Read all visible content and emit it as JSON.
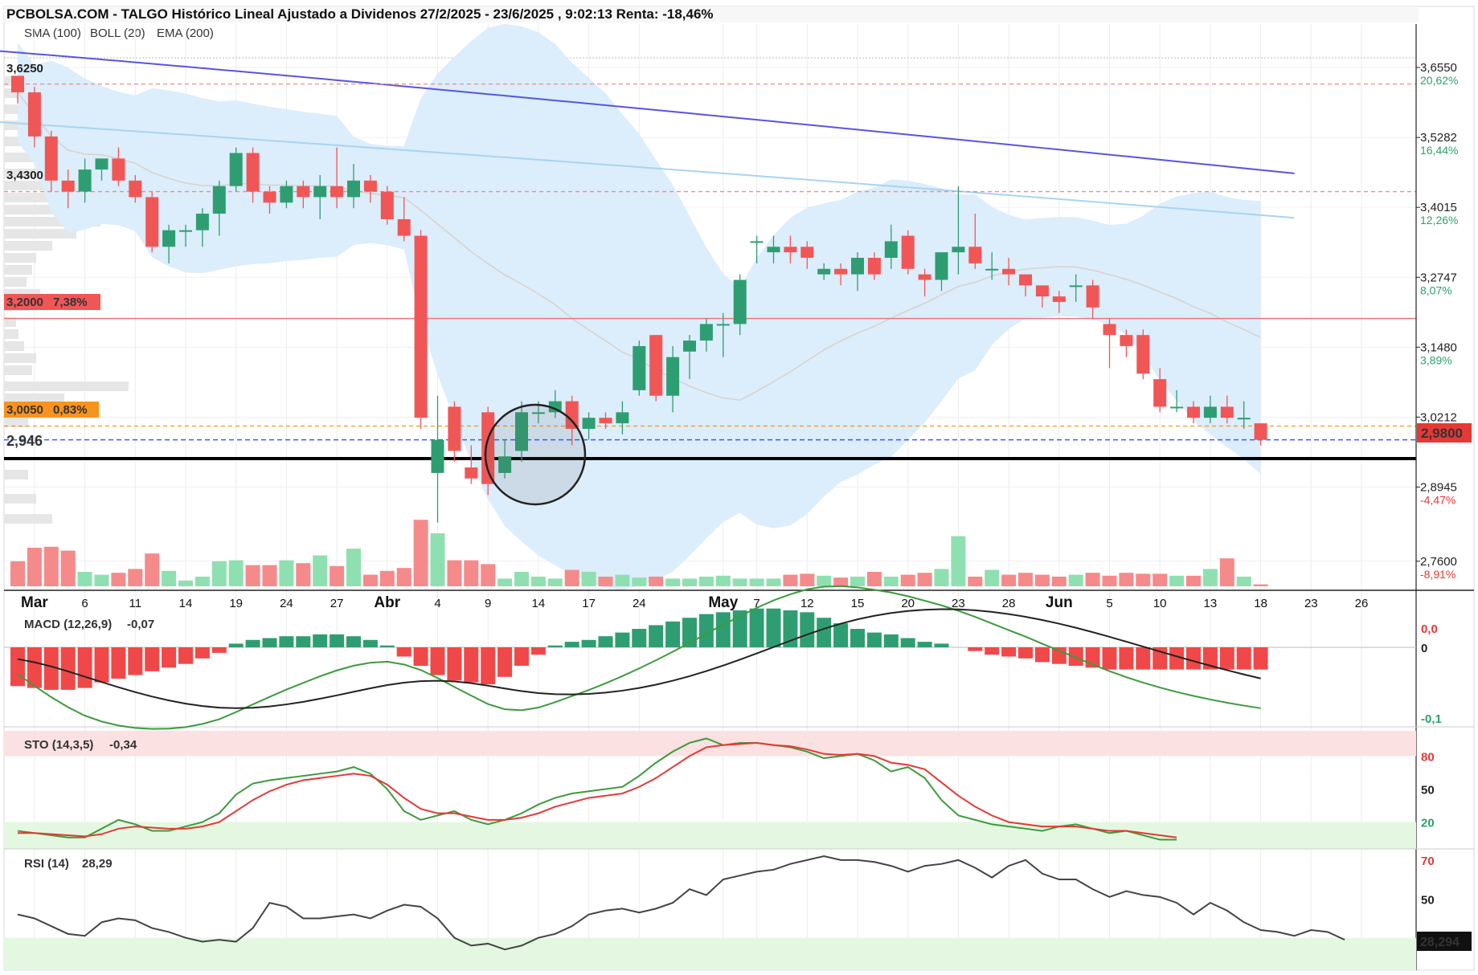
{
  "header": {
    "title": "PCBOLSA.COM - TALGO Histórico Lineal Ajustado a Dividenos 27/2/2025 - 23/6/2025 , 9:02:13 Renta: -18,46%",
    "legend_sma": "SMA (100)",
    "legend_boll": "BOLL (20)",
    "legend_ema": "EMA (200)"
  },
  "colors": {
    "up": "#2e9e72",
    "down": "#f15656",
    "boll_fill": "#dcedfb",
    "sma": "#a8d4f0",
    "ema": "#5855e0",
    "boll_mid": "#d7d2cc",
    "support": "#000000",
    "resist": "#f28b8b",
    "current": "#e53935",
    "blue_dash": "#3a5ef0",
    "orange": "#f7931e"
  },
  "price_axis": {
    "ticks": [
      {
        "value": 3.655,
        "label": "3,6550",
        "pct": "20,62%"
      },
      {
        "value": 3.5282,
        "label": "3,5282",
        "pct": "16,44%"
      },
      {
        "value": 3.4015,
        "label": "3,4015",
        "pct": "12,26%"
      },
      {
        "value": 3.2747,
        "label": "3,2747",
        "pct": "8,07%"
      },
      {
        "value": 3.148,
        "label": "3,1480",
        "pct": "3,89%"
      },
      {
        "value": 3.0212,
        "label": "3,0212",
        "pct": "-0,28%"
      },
      {
        "value": 2.8945,
        "label": "2,8945",
        "pct": "-4,47%"
      },
      {
        "value": 2.76,
        "label": "2,7600",
        "pct": "-8,91%"
      }
    ],
    "current_label": "2,9800"
  },
  "levels": {
    "l3625": "3,6250",
    "l3430": "3,4300",
    "l3200": "3,2000",
    "l3200_pct": "7,38%",
    "l3005": "3,0050",
    "l3005_pct": "0,83%",
    "support": "2,946"
  },
  "x_axis": {
    "labels": [
      {
        "text": "Mar",
        "idx": 1,
        "month": true
      },
      {
        "text": "6",
        "idx": 4
      },
      {
        "text": "11",
        "idx": 7
      },
      {
        "text": "14",
        "idx": 10
      },
      {
        "text": "19",
        "idx": 13
      },
      {
        "text": "24",
        "idx": 16
      },
      {
        "text": "27",
        "idx": 19
      },
      {
        "text": "Abr",
        "idx": 22,
        "month": true
      },
      {
        "text": "4",
        "idx": 25
      },
      {
        "text": "9",
        "idx": 28
      },
      {
        "text": "14",
        "idx": 31
      },
      {
        "text": "17",
        "idx": 34
      },
      {
        "text": "24",
        "idx": 37
      },
      {
        "text": "May",
        "idx": 42,
        "month": true
      },
      {
        "text": "7",
        "idx": 44
      },
      {
        "text": "12",
        "idx": 47
      },
      {
        "text": "15",
        "idx": 50
      },
      {
        "text": "20",
        "idx": 53
      },
      {
        "text": "23",
        "idx": 56
      },
      {
        "text": "28",
        "idx": 59
      },
      {
        "text": "Jun",
        "idx": 62,
        "month": true
      },
      {
        "text": "5",
        "idx": 65
      },
      {
        "text": "10",
        "idx": 68
      },
      {
        "text": "13",
        "idx": 71
      },
      {
        "text": "18",
        "idx": 74
      },
      {
        "text": "23",
        "idx": 77
      },
      {
        "text": "26",
        "idx": 80
      }
    ]
  },
  "macd": {
    "label": "MACD (12,26,9)",
    "value": "-0,07",
    "ticks": [
      "0,0",
      "0",
      "-0,1"
    ]
  },
  "sto": {
    "label": "STO (14,3,5)",
    "value": "-0,34",
    "ticks": [
      "80",
      "50",
      "20"
    ]
  },
  "rsi": {
    "label": "RSI (14)",
    "value": "28,29",
    "ticks": [
      "70",
      "50"
    ],
    "current_label": "28,294"
  },
  "chart_data": {
    "type": "candlestick",
    "title": "PCBOLSA.COM - TALGO Histórico Lineal Ajustado a Dividenos 27/2/2025 - 23/6/2025 , 9:02:13 Renta: -18,46%",
    "ylim": [
      2.7,
      3.69
    ],
    "candles": [
      [
        3.64,
        3.61,
        3.64,
        3.59
      ],
      [
        3.61,
        3.53,
        3.62,
        3.51
      ],
      [
        3.53,
        3.45,
        3.54,
        3.43
      ],
      [
        3.45,
        3.43,
        3.47,
        3.4
      ],
      [
        3.43,
        3.47,
        3.49,
        3.41
      ],
      [
        3.47,
        3.49,
        3.49,
        3.45
      ],
      [
        3.49,
        3.45,
        3.51,
        3.44
      ],
      [
        3.45,
        3.42,
        3.46,
        3.41
      ],
      [
        3.42,
        3.33,
        3.43,
        3.32
      ],
      [
        3.33,
        3.36,
        3.37,
        3.3
      ],
      [
        3.36,
        3.36,
        3.37,
        3.33
      ],
      [
        3.36,
        3.39,
        3.4,
        3.33
      ],
      [
        3.39,
        3.44,
        3.45,
        3.35
      ],
      [
        3.44,
        3.5,
        3.51,
        3.43
      ],
      [
        3.5,
        3.43,
        3.51,
        3.41
      ],
      [
        3.43,
        3.41,
        3.44,
        3.39
      ],
      [
        3.41,
        3.44,
        3.45,
        3.4
      ],
      [
        3.44,
        3.42,
        3.45,
        3.4
      ],
      [
        3.42,
        3.44,
        3.46,
        3.38
      ],
      [
        3.44,
        3.42,
        3.51,
        3.4
      ],
      [
        3.42,
        3.45,
        3.48,
        3.4
      ],
      [
        3.45,
        3.43,
        3.46,
        3.41
      ],
      [
        3.43,
        3.38,
        3.44,
        3.37
      ],
      [
        3.38,
        3.35,
        3.42,
        3.34
      ],
      [
        3.35,
        3.02,
        3.36,
        3.0
      ],
      [
        2.92,
        2.98,
        3.06,
        2.83
      ],
      [
        3.04,
        2.96,
        3.05,
        2.94
      ],
      [
        2.93,
        2.91,
        2.97,
        2.9
      ],
      [
        3.03,
        2.9,
        3.04,
        2.88
      ],
      [
        2.92,
        2.95,
        2.98,
        2.91
      ],
      [
        2.96,
        3.03,
        3.05,
        2.94
      ],
      [
        3.03,
        3.03,
        3.05,
        3.01
      ],
      [
        3.03,
        3.05,
        3.07,
        3.02
      ],
      [
        3.05,
        3.0,
        3.06,
        2.97
      ],
      [
        3.0,
        3.02,
        3.03,
        2.98
      ],
      [
        3.02,
        3.01,
        3.03,
        3.0
      ],
      [
        3.01,
        3.03,
        3.05,
        2.99
      ],
      [
        3.07,
        3.15,
        3.16,
        3.06
      ],
      [
        3.17,
        3.06,
        3.17,
        3.05
      ],
      [
        3.06,
        3.13,
        3.15,
        3.03
      ],
      [
        3.14,
        3.16,
        3.17,
        3.09
      ],
      [
        3.16,
        3.19,
        3.2,
        3.14
      ],
      [
        3.19,
        3.19,
        3.21,
        3.13
      ],
      [
        3.19,
        3.27,
        3.28,
        3.17
      ],
      [
        3.34,
        3.34,
        3.35,
        3.3
      ],
      [
        3.32,
        3.33,
        3.35,
        3.3
      ],
      [
        3.33,
        3.32,
        3.35,
        3.3
      ],
      [
        3.33,
        3.31,
        3.34,
        3.29
      ],
      [
        3.28,
        3.29,
        3.3,
        3.27
      ],
      [
        3.29,
        3.28,
        3.3,
        3.26
      ],
      [
        3.28,
        3.31,
        3.32,
        3.25
      ],
      [
        3.31,
        3.28,
        3.32,
        3.27
      ],
      [
        3.31,
        3.34,
        3.37,
        3.29
      ],
      [
        3.35,
        3.29,
        3.36,
        3.28
      ],
      [
        3.28,
        3.27,
        3.29,
        3.24
      ],
      [
        3.27,
        3.32,
        3.32,
        3.25
      ],
      [
        3.32,
        3.33,
        3.44,
        3.28
      ],
      [
        3.33,
        3.3,
        3.39,
        3.29
      ],
      [
        3.29,
        3.29,
        3.32,
        3.27
      ],
      [
        3.29,
        3.28,
        3.31,
        3.26
      ],
      [
        3.28,
        3.26,
        3.28,
        3.24
      ],
      [
        3.26,
        3.24,
        3.26,
        3.22
      ],
      [
        3.24,
        3.23,
        3.25,
        3.21
      ],
      [
        3.26,
        3.26,
        3.28,
        3.23
      ],
      [
        3.26,
        3.22,
        3.27,
        3.2
      ],
      [
        3.19,
        3.17,
        3.2,
        3.11
      ],
      [
        3.17,
        3.15,
        3.18,
        3.13
      ],
      [
        3.17,
        3.1,
        3.18,
        3.09
      ],
      [
        3.09,
        3.04,
        3.11,
        3.03
      ],
      [
        3.04,
        3.04,
        3.07,
        3.03
      ],
      [
        3.04,
        3.02,
        3.05,
        3.01
      ],
      [
        3.02,
        3.04,
        3.06,
        3.01
      ],
      [
        3.04,
        3.02,
        3.06,
        3.01
      ],
      [
        3.02,
        3.02,
        3.05,
        3.0
      ],
      [
        3.01,
        2.98,
        3.01,
        2.97
      ]
    ],
    "volume": [
      26,
      40,
      41,
      37,
      15,
      12,
      14,
      18,
      34,
      16,
      6,
      10,
      26,
      27,
      22,
      22,
      27,
      24,
      32,
      21,
      39,
      12,
      16,
      19,
      69,
      55,
      27,
      27,
      23,
      8,
      15,
      10,
      8,
      17,
      15,
      10,
      12,
      9,
      10,
      8,
      8,
      10,
      11,
      8,
      8,
      8,
      12,
      13,
      11,
      9,
      10,
      15,
      10,
      12,
      14,
      18,
      52,
      10,
      17,
      12,
      14,
      12,
      10,
      12,
      14,
      11,
      14,
      13,
      13,
      11,
      11,
      18,
      29,
      10,
      2
    ],
    "macd_hist": [
      -0.021,
      -0.022,
      -0.023,
      -0.023,
      -0.022,
      -0.019,
      -0.017,
      -0.015,
      -0.013,
      -0.011,
      -0.009,
      -0.006,
      -0.003,
      0.002,
      0.004,
      0.005,
      0.006,
      0.006,
      0.007,
      0.007,
      0.006,
      0.004,
      0.001,
      -0.005,
      -0.01,
      -0.015,
      -0.018,
      -0.019,
      -0.02,
      -0.016,
      -0.01,
      -0.004,
      0.001,
      0.003,
      0.004,
      0.006,
      0.008,
      0.01,
      0.012,
      0.014,
      0.016,
      0.018,
      0.019,
      0.02,
      0.021,
      0.021,
      0.02,
      0.019,
      0.016,
      0.013,
      0.01,
      0.008,
      0.007,
      0.005,
      0.003,
      0.002,
      0.0,
      -0.002,
      -0.004,
      -0.005,
      -0.006,
      -0.008,
      -0.009,
      -0.01,
      -0.011,
      -0.012,
      -0.012,
      -0.012,
      -0.012,
      -0.012,
      -0.012,
      -0.012,
      -0.012,
      -0.012,
      -0.012
    ],
    "sto_k": [
      12,
      10,
      8,
      6,
      6,
      14,
      22,
      18,
      12,
      12,
      16,
      20,
      28,
      45,
      55,
      58,
      60,
      62,
      64,
      66,
      70,
      64,
      50,
      30,
      22,
      26,
      30,
      22,
      18,
      22,
      28,
      36,
      42,
      46,
      48,
      50,
      52,
      62,
      74,
      84,
      92,
      96,
      90,
      92,
      92,
      90,
      88,
      84,
      78,
      80,
      82,
      76,
      66,
      70,
      60,
      40,
      26,
      22,
      18,
      16,
      14,
      12,
      16,
      18,
      14,
      10,
      12,
      8,
      4,
      4
    ],
    "sto_d": [
      10,
      10,
      9,
      8,
      7,
      9,
      14,
      16,
      15,
      14,
      14,
      16,
      20,
      30,
      40,
      48,
      54,
      58,
      60,
      62,
      64,
      62,
      54,
      42,
      32,
      28,
      28,
      25,
      22,
      22,
      24,
      28,
      34,
      38,
      42,
      44,
      46,
      52,
      60,
      70,
      80,
      88,
      90,
      91,
      92,
      90,
      89,
      86,
      82,
      81,
      82,
      80,
      74,
      72,
      68,
      56,
      44,
      34,
      26,
      20,
      18,
      16,
      16,
      16,
      14,
      12,
      12,
      10,
      8,
      6
    ],
    "rsi": [
      42,
      40,
      36,
      32,
      31,
      38,
      40,
      39,
      35,
      33,
      30,
      28,
      29,
      28,
      35,
      48,
      46,
      40,
      40,
      41,
      42,
      40,
      44,
      47,
      46,
      40,
      30,
      26,
      27,
      24,
      26,
      30,
      32,
      36,
      42,
      44,
      45,
      43,
      45,
      48,
      55,
      52,
      60,
      62,
      64,
      65,
      68,
      70,
      72,
      70,
      70,
      69,
      67,
      64,
      67,
      68,
      70,
      66,
      61,
      67,
      70,
      63,
      60,
      60,
      55,
      51,
      54,
      52,
      51,
      48,
      42,
      48,
      44,
      38,
      34,
      33,
      31,
      34,
      33,
      29
    ]
  }
}
